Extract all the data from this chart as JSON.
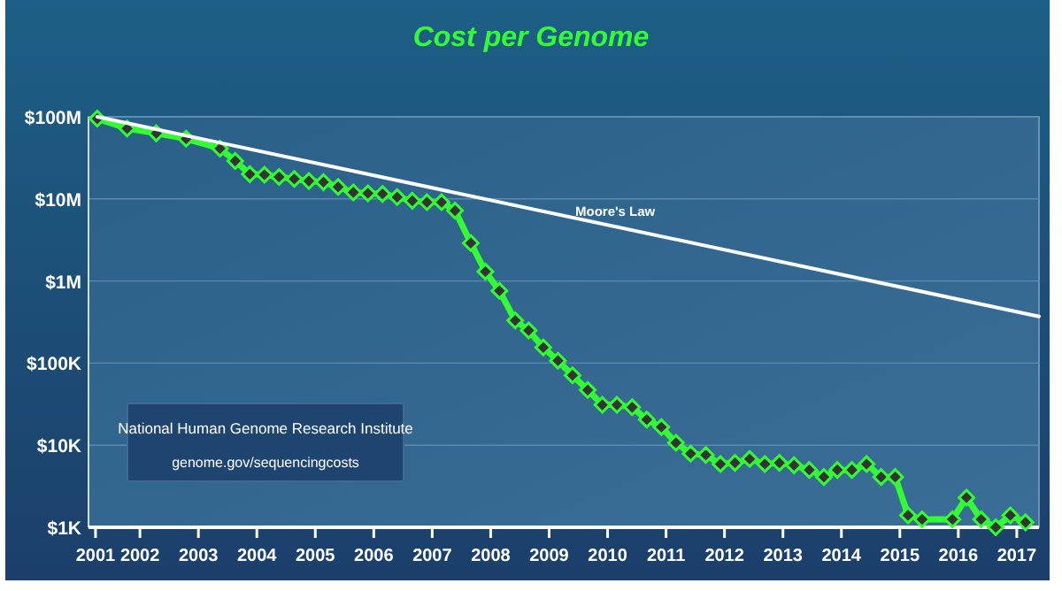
{
  "chart_data": {
    "type": "line",
    "title": "Cost per Genome",
    "annotations": [
      "National Human Genome Research Institute",
      "genome.gov/sequencingcosts"
    ],
    "series": [
      {
        "color": "#33ff33",
        "marker": "diamond",
        "x": [
          2001.27,
          2001.78,
          2002.28,
          2002.79,
          2003.37,
          2003.63,
          2003.88,
          2004.13,
          2004.38,
          2004.64,
          2004.89,
          2005.14,
          2005.39,
          2005.65,
          2005.9,
          2006.15,
          2006.4,
          2006.66,
          2006.91,
          2007.16,
          2007.39,
          2007.66,
          2007.91,
          2008.15,
          2008.42,
          2008.65,
          2008.9,
          2009.15,
          2009.4,
          2009.66,
          2009.91,
          2010.16,
          2010.42,
          2010.67,
          2010.92,
          2011.17,
          2011.42,
          2011.68,
          2011.93,
          2012.18,
          2012.43,
          2012.69,
          2012.94,
          2013.19,
          2013.45,
          2013.7,
          2013.93,
          2014.18,
          2014.43,
          2014.68,
          2014.92,
          2015.14,
          2015.38,
          2015.9,
          2016.14,
          2016.39,
          2016.64,
          2016.89,
          2017.15
        ],
        "values": [
          95000000,
          72000000,
          63000000,
          54000000,
          41000000,
          29000000,
          20000000,
          19700000,
          18500000,
          17500000,
          16500000,
          16000000,
          14000000,
          12000000,
          11700000,
          11500000,
          10500000,
          9500000,
          9100000,
          9100000,
          7200000,
          2900000,
          1300000,
          760000,
          330000,
          250000,
          155000,
          107000,
          71000,
          47000,
          31000,
          31000,
          29000,
          20500,
          16600,
          10700,
          7900,
          7600,
          5900,
          6100,
          6800,
          5900,
          6100,
          5700,
          5000,
          4100,
          5000,
          5000,
          5900,
          4100,
          4100,
          1400,
          1250,
          1250,
          2300,
          1250,
          1000,
          1400,
          1150
        ]
      },
      {
        "name": "Moore's Law",
        "color": "#ffffff",
        "marker": "none",
        "x": [
          2001.27,
          2017.38
        ],
        "values": [
          100000000,
          370000
        ]
      }
    ],
    "xlim": [
      2001.12,
      2017.38
    ],
    "xticks": [
      {
        "value": 2001.24,
        "label": "2001"
      },
      2002,
      2003,
      2004,
      2005,
      2006,
      2007,
      2008,
      2009,
      2010,
      2011,
      2012,
      2013,
      2014,
      2015,
      2016,
      2017
    ],
    "ylim": [
      1000,
      100000000
    ],
    "yticks": [
      {
        "value": 1000,
        "label": "$1K"
      },
      {
        "value": 10000,
        "label": "$10K"
      },
      {
        "value": 100000,
        "label": "$100K"
      },
      {
        "value": 1000000,
        "label": "$1M"
      },
      {
        "value": 10000000,
        "label": "$10M"
      },
      {
        "value": 100000000,
        "label": "$100M"
      }
    ],
    "log": true,
    "grid": "y"
  }
}
